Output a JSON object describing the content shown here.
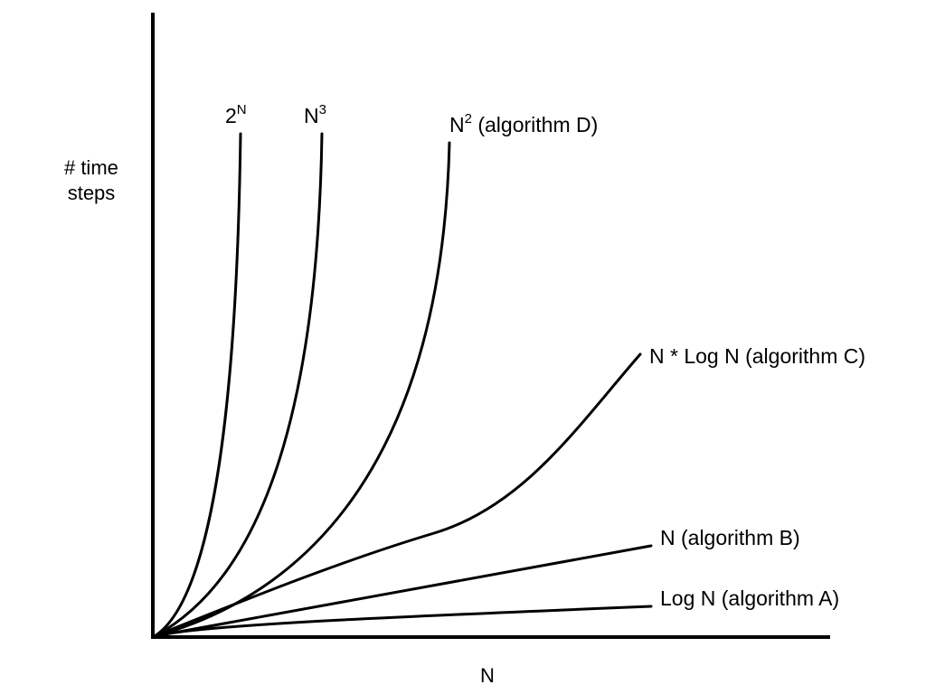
{
  "chart_data": {
    "type": "line",
    "title": "",
    "xlabel": "N",
    "ylabel_lines": [
      "# time",
      "steps"
    ],
    "grid": false,
    "legend": "none",
    "colors": {
      "line": "#000000",
      "axis": "#000000",
      "background": "#ffffff"
    },
    "series": [
      {
        "label_base": "2",
        "label_sup": "N",
        "label_tail": "",
        "shape": "exponential-2N"
      },
      {
        "label_base": "N",
        "label_sup": "3",
        "label_tail": "",
        "shape": "cubic"
      },
      {
        "label_base": "N",
        "label_sup": "2",
        "label_tail": " (algorithm D)",
        "shape": "quadratic"
      },
      {
        "label_base": "N * Log N  (algorithm C)",
        "label_sup": "",
        "label_tail": "",
        "shape": "nlogn"
      },
      {
        "label_base": "N  (algorithm B)",
        "label_sup": "",
        "label_tail": "",
        "shape": "linear"
      },
      {
        "label_base": "Log N  (algorithm A)",
        "label_sup": "",
        "label_tail": "",
        "shape": "logarithmic"
      }
    ]
  }
}
